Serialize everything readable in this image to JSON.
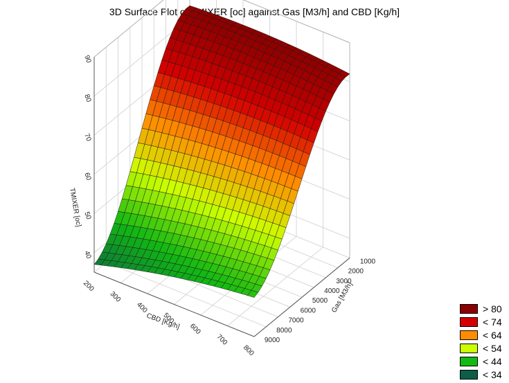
{
  "chart_data": {
    "type": "surface3d",
    "title": "3D Surface Plot of TMIXER [oc] against Gas [M3/h] and CBD [Kg/h]",
    "xlabel": "CBD [Kg/h]",
    "ylabel": "Gas [M3/h]",
    "zlabel": "TMIXER [oc]",
    "xlim": [
      200,
      800
    ],
    "ylim": [
      1000,
      9000
    ],
    "zlim": [
      35,
      90
    ],
    "xticks": [
      "200",
      "300",
      "400",
      "500",
      "600",
      "700",
      "800"
    ],
    "yticks": [
      "1000",
      "2000",
      "3000",
      "4000",
      "5000",
      "6000",
      "7000",
      "8000",
      "9000"
    ],
    "zticks": [
      "40",
      "50",
      "60",
      "70",
      "80",
      "90"
    ],
    "grid": true,
    "corner_values": [
      {
        "cbd": 200,
        "gas": 9000,
        "tmixer": 37
      },
      {
        "cbd": 800,
        "gas": 9000,
        "tmixer": 45
      },
      {
        "cbd": 200,
        "gas": 1000,
        "tmixer": 83
      },
      {
        "cbd": 800,
        "gas": 1000,
        "tmixer": 82
      }
    ],
    "legend": {
      "position": "bottom-right",
      "items": [
        {
          "label": "> 80",
          "color": "#8b0000"
        },
        {
          "label": "< 74",
          "color": "#d40000"
        },
        {
          "label": "< 64",
          "color": "#ff8c00"
        },
        {
          "label": "< 54",
          "color": "#ccff00"
        },
        {
          "label": "< 44",
          "color": "#12b912"
        },
        {
          "label": "< 34",
          "color": "#0c5e48"
        }
      ]
    }
  }
}
